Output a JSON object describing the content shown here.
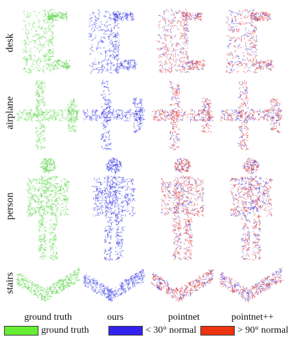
{
  "rows": [
    {
      "label": "desk"
    },
    {
      "label": "airplane"
    },
    {
      "label": "person"
    },
    {
      "label": "stairs"
    }
  ],
  "columns": [
    {
      "label": "ground truth"
    },
    {
      "label": "ours"
    },
    {
      "label": "pointnet"
    },
    {
      "label": "pointnet++"
    }
  ],
  "legend": [
    {
      "label": "ground truth",
      "color": "#66ee33"
    },
    {
      "label": "< 30° normal",
      "color": "#3322ee"
    },
    {
      "label": "> 90° normal",
      "color": "#ee3311"
    }
  ],
  "colors": {
    "green": "#5cd44a",
    "blue": "#3a3ae8",
    "red": "#e03a3a",
    "lightblue": "#9aa6ee"
  }
}
